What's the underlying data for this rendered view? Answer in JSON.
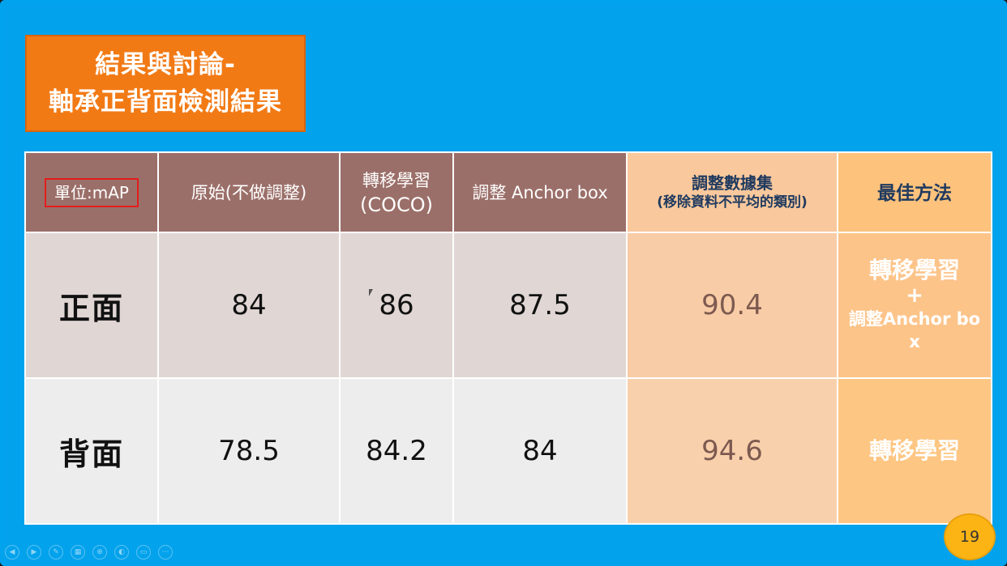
{
  "title": {
    "line1": "結果與討論-",
    "line2": "軸承正背面檢測結果"
  },
  "table": {
    "header": {
      "unit": "單位:mAP",
      "col_original": "原始(不做調整)",
      "col_transfer_line1": "轉移學習",
      "col_transfer_line2": "(COCO)",
      "col_anchor": "調整 Anchor box",
      "col_dataset_line1": "調整數據集",
      "col_dataset_line2": "(移除資料不平均的類別)",
      "col_best": "最佳方法"
    },
    "rows": [
      {
        "label": "正面",
        "original": "84",
        "transfer": "86",
        "anchor": "87.5",
        "dataset": "90.4",
        "best_line1": "轉移學習",
        "best_line2": "+",
        "best_line3": "調整Anchor bo",
        "best_line4": "x"
      },
      {
        "label": "背面",
        "original": "78.5",
        "transfer": "84.2",
        "anchor": "84",
        "dataset": "94.6",
        "best_line1": "轉移學習"
      }
    ]
  },
  "page_number": "19",
  "toolbar_icons": [
    "prev-icon",
    "next-icon",
    "pen-icon",
    "slides-icon",
    "zoom-icon",
    "blank-icon",
    "subtitle-icon",
    "more-icon"
  ],
  "colors": {
    "background": "#03a2ec",
    "title_bg": "#f27a15",
    "header_brown": "#9b6f69",
    "header_peach": "#f9c89c",
    "header_orange": "#fdc27c",
    "unit_border": "#e21d1d",
    "page_badge": "#fcb415"
  }
}
